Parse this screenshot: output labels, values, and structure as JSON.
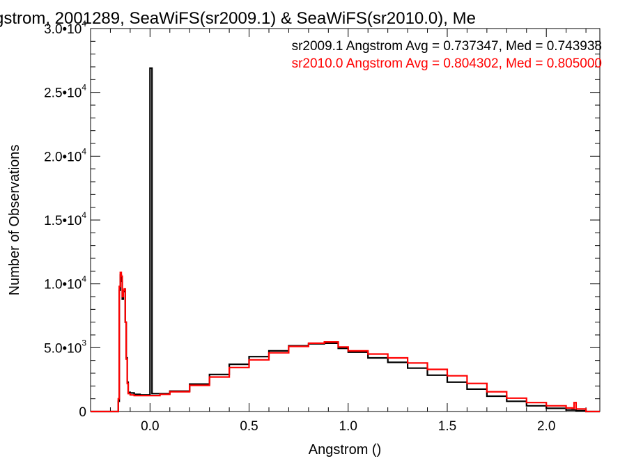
{
  "chart_data": {
    "type": "line",
    "title": "gstrom, 2001289, SeaWiFS(sr2009.1) & SeaWiFS(sr2010.0), Me",
    "xlabel": "Angstrom ()",
    "ylabel": "Number of Observations",
    "xlim": [
      -0.3,
      2.27
    ],
    "ylim": [
      0,
      30000
    ],
    "grid": false,
    "x_ticks": [
      {
        "value": 0.0,
        "label": "0.0"
      },
      {
        "value": 0.5,
        "label": "0.5"
      },
      {
        "value": 1.0,
        "label": "1.0"
      },
      {
        "value": 1.5,
        "label": "1.5"
      },
      {
        "value": 2.0,
        "label": "2.0"
      }
    ],
    "y_ticks": [
      {
        "value": 0,
        "mant": "0",
        "exp": ""
      },
      {
        "value": 5000,
        "mant": "5.0•10",
        "exp": "3"
      },
      {
        "value": 10000,
        "mant": "1.0•10",
        "exp": "4"
      },
      {
        "value": 15000,
        "mant": "1.5•10",
        "exp": "4"
      },
      {
        "value": 20000,
        "mant": "2.0•10",
        "exp": "4"
      },
      {
        "value": 25000,
        "mant": "2.5•10",
        "exp": "4"
      },
      {
        "value": 30000,
        "mant": "3.0•10",
        "exp": "4"
      }
    ],
    "legend": [
      {
        "text": "sr2009.1 Angstrom Avg = 0.737347, Med = 0.743938",
        "color": "#000000"
      },
      {
        "text": "sr2010.0 Angstrom Avg = 0.804302, Med = 0.805000",
        "color": "#ff0000"
      }
    ],
    "legend_position": "top-right",
    "series": [
      {
        "color": "#000000",
        "points": [
          [
            -0.3,
            0
          ],
          [
            -0.17,
            0
          ],
          [
            -0.16,
            800
          ],
          [
            -0.155,
            9500
          ],
          [
            -0.15,
            10700
          ],
          [
            -0.145,
            10200
          ],
          [
            -0.14,
            8800
          ],
          [
            -0.135,
            9400
          ],
          [
            -0.13,
            9500
          ],
          [
            -0.125,
            7000
          ],
          [
            -0.12,
            4200
          ],
          [
            -0.115,
            2300
          ],
          [
            -0.11,
            1500
          ],
          [
            -0.1,
            1450
          ],
          [
            -0.08,
            1350
          ],
          [
            -0.05,
            1300
          ],
          [
            -0.02,
            1300
          ],
          [
            -0.005,
            1300
          ],
          [
            0.0,
            26900
          ],
          [
            0.008,
            26900
          ],
          [
            0.01,
            1400
          ],
          [
            0.05,
            1400
          ],
          [
            0.1,
            1600
          ],
          [
            0.2,
            2150
          ],
          [
            0.3,
            2900
          ],
          [
            0.4,
            3700
          ],
          [
            0.5,
            4300
          ],
          [
            0.6,
            4750
          ],
          [
            0.7,
            5150
          ],
          [
            0.8,
            5300
          ],
          [
            0.88,
            5350
          ],
          [
            0.95,
            4950
          ],
          [
            1.0,
            4650
          ],
          [
            1.1,
            4200
          ],
          [
            1.2,
            3850
          ],
          [
            1.3,
            3400
          ],
          [
            1.4,
            2850
          ],
          [
            1.5,
            2300
          ],
          [
            1.6,
            1750
          ],
          [
            1.7,
            1200
          ],
          [
            1.8,
            800
          ],
          [
            1.9,
            450
          ],
          [
            2.0,
            250
          ],
          [
            2.1,
            120
          ],
          [
            2.15,
            60
          ],
          [
            2.2,
            0
          ],
          [
            2.27,
            0
          ]
        ]
      },
      {
        "color": "#ff0000",
        "points": [
          [
            -0.3,
            0
          ],
          [
            -0.17,
            0
          ],
          [
            -0.16,
            1000
          ],
          [
            -0.155,
            9800
          ],
          [
            -0.15,
            10900
          ],
          [
            -0.145,
            10600
          ],
          [
            -0.14,
            9000
          ],
          [
            -0.135,
            9500
          ],
          [
            -0.13,
            9600
          ],
          [
            -0.125,
            7000
          ],
          [
            -0.12,
            4100
          ],
          [
            -0.115,
            2200
          ],
          [
            -0.11,
            1400
          ],
          [
            -0.1,
            1300
          ],
          [
            -0.08,
            1250
          ],
          [
            -0.05,
            1250
          ],
          [
            0.0,
            1250
          ],
          [
            0.05,
            1350
          ],
          [
            0.1,
            1550
          ],
          [
            0.2,
            2050
          ],
          [
            0.3,
            2700
          ],
          [
            0.4,
            3450
          ],
          [
            0.5,
            4050
          ],
          [
            0.6,
            4600
          ],
          [
            0.7,
            5100
          ],
          [
            0.8,
            5350
          ],
          [
            0.88,
            5450
          ],
          [
            0.95,
            5050
          ],
          [
            1.0,
            4750
          ],
          [
            1.1,
            4500
          ],
          [
            1.2,
            4200
          ],
          [
            1.3,
            3800
          ],
          [
            1.4,
            3300
          ],
          [
            1.5,
            2800
          ],
          [
            1.6,
            2200
          ],
          [
            1.7,
            1550
          ],
          [
            1.8,
            1050
          ],
          [
            1.9,
            700
          ],
          [
            2.0,
            450
          ],
          [
            2.1,
            280
          ],
          [
            2.13,
            250
          ],
          [
            2.14,
            700
          ],
          [
            2.15,
            200
          ],
          [
            2.2,
            0
          ],
          [
            2.27,
            0
          ]
        ]
      }
    ]
  }
}
